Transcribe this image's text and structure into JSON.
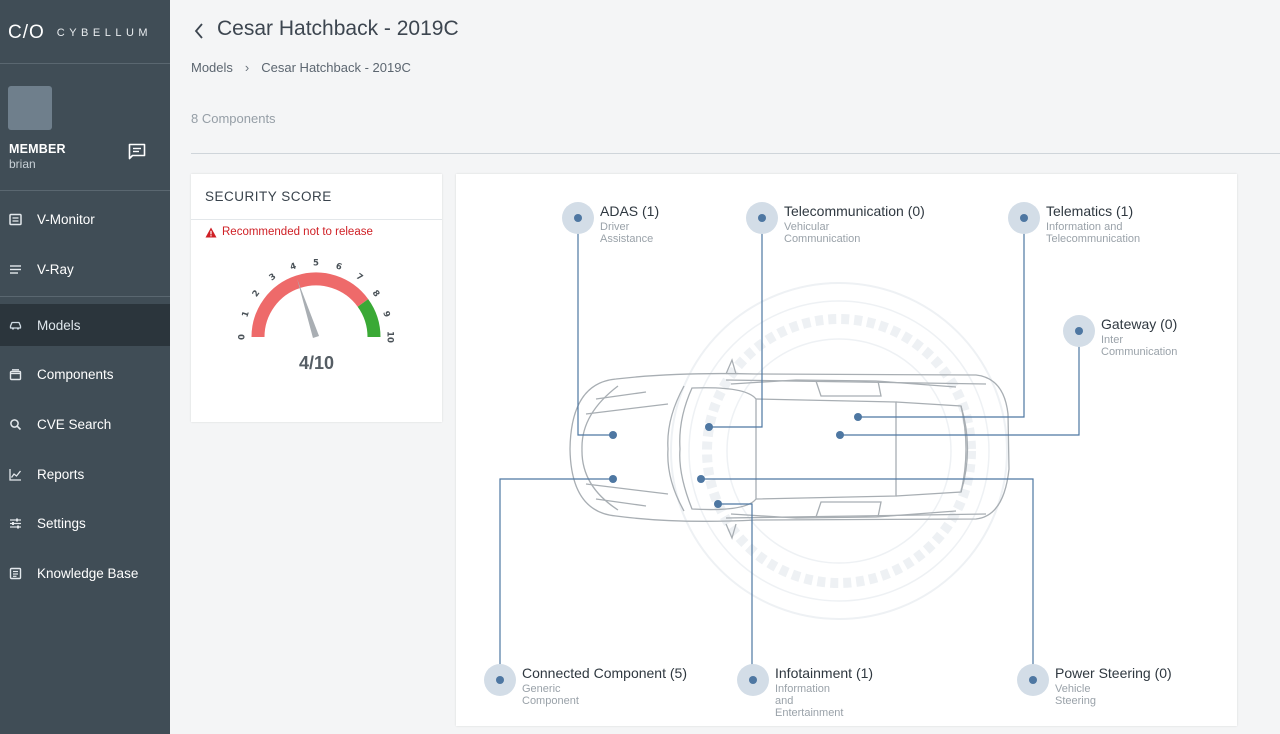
{
  "brand": {
    "mark": "C/O",
    "name": "CYBELLUM"
  },
  "user": {
    "role": "MEMBER",
    "name": "brian"
  },
  "sidebar": {
    "items": [
      {
        "label": "V-Monitor",
        "icon": "monitor-icon"
      },
      {
        "label": "V-Ray",
        "icon": "list-icon"
      },
      {
        "label": "Models",
        "icon": "car-icon",
        "active": true
      },
      {
        "label": "Components",
        "icon": "box-icon"
      },
      {
        "label": "CVE Search",
        "icon": "search-icon"
      },
      {
        "label": "Reports",
        "icon": "chart-icon"
      },
      {
        "label": "Settings",
        "icon": "sliders-icon"
      },
      {
        "label": "Knowledge Base",
        "icon": "book-icon"
      }
    ]
  },
  "header": {
    "title": "Cesar Hatchback - 2019C",
    "breadcrumb": [
      "Models",
      "Cesar Hatchback - 2019C"
    ],
    "breadcrumb_sep": "›",
    "component_count": "8 Components"
  },
  "security": {
    "title": "SECURITY SCORE",
    "warning": "Recommended not to release",
    "score": "4/10",
    "score_value": 4,
    "ticks": [
      "0",
      "1",
      "2",
      "3",
      "4",
      "5",
      "6",
      "7",
      "8",
      "9",
      "10"
    ],
    "colors": {
      "danger": "#ee6a6a",
      "safe": "#3aa935",
      "needle": "#a9aeb3"
    }
  },
  "components": [
    {
      "name": "ADAS (1)",
      "desc": "Driver Assistance"
    },
    {
      "name": "Telecommunication (0)",
      "desc": "Vehicular Communication"
    },
    {
      "name": "Telematics (1)",
      "desc": "Information and Telecommunication"
    },
    {
      "name": "Gateway (0)",
      "desc": "Inter Communication"
    },
    {
      "name": "Connected Component (5)",
      "desc": "Generic Component"
    },
    {
      "name": "Infotainment (1)",
      "desc": "Information and Entertainment"
    },
    {
      "name": "Power Steering (0)",
      "desc": "Vehicle Steering"
    }
  ],
  "colors": {
    "sidebar": "#404d56",
    "sidebar_active": "#2b353c",
    "accent": "#4e77a2",
    "node_halo": "#d3dde7"
  }
}
